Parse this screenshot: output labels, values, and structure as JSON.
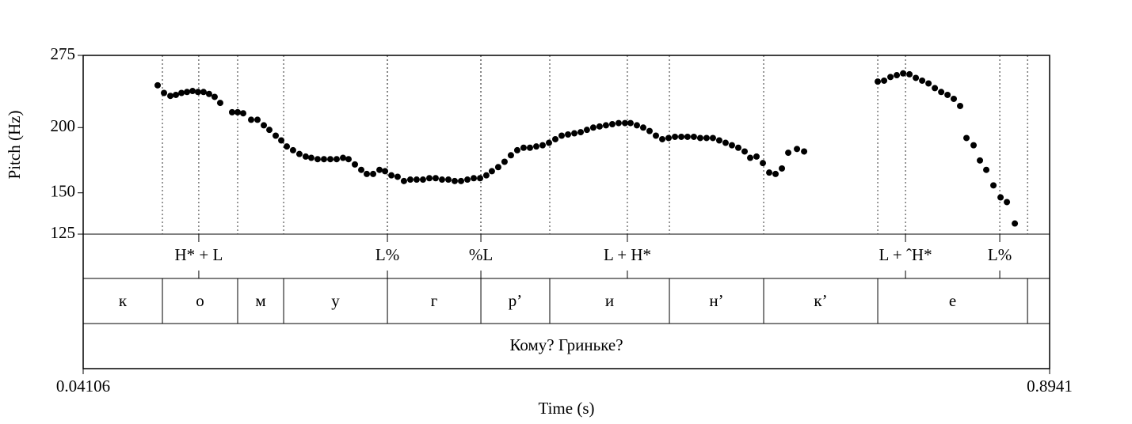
{
  "chart_data": {
    "type": "scatter",
    "x": [
      0.1068,
      0.1124,
      0.118,
      0.1229,
      0.1278,
      0.1327,
      0.1376,
      0.1424,
      0.1473,
      0.1522,
      0.1571,
      0.162,
      0.1725,
      0.1774,
      0.1823,
      0.1893,
      0.1949,
      0.2005,
      0.2054,
      0.211,
      0.2159,
      0.2208,
      0.2263,
      0.2319,
      0.2375,
      0.2424,
      0.248,
      0.2536,
      0.2592,
      0.2648,
      0.2704,
      0.2753,
      0.2809,
      0.2865,
      0.2914,
      0.297,
      0.3026,
      0.3075,
      0.3131,
      0.3186,
      0.3242,
      0.3298,
      0.3354,
      0.341,
      0.3466,
      0.3522,
      0.3578,
      0.3634,
      0.369,
      0.3746,
      0.3802,
      0.3858,
      0.3914,
      0.3969,
      0.4018,
      0.4074,
      0.413,
      0.4186,
      0.4242,
      0.4298,
      0.4354,
      0.441,
      0.4466,
      0.4522,
      0.4578,
      0.4634,
      0.469,
      0.4746,
      0.4802,
      0.4857,
      0.4913,
      0.4969,
      0.5025,
      0.5081,
      0.5137,
      0.5193,
      0.5242,
      0.5298,
      0.5354,
      0.541,
      0.5466,
      0.5522,
      0.5578,
      0.5634,
      0.569,
      0.5745,
      0.5801,
      0.5857,
      0.5913,
      0.5969,
      0.6025,
      0.6081,
      0.6137,
      0.6193,
      0.6249,
      0.6298,
      0.6354,
      0.641,
      0.6466,
      0.6522,
      0.6578,
      0.6634,
      0.6711,
      0.6774,
      0.7424,
      0.748,
      0.7536,
      0.7592,
      0.7648,
      0.7704,
      0.776,
      0.7816,
      0.7872,
      0.7928,
      0.7984,
      0.804,
      0.8095,
      0.8151,
      0.8207,
      0.827,
      0.8326,
      0.8382,
      0.8445,
      0.8508,
      0.8564,
      0.8634
    ],
    "values": [
      241,
      233,
      230,
      231,
      233,
      234,
      235,
      234,
      234,
      232,
      229,
      223,
      214,
      214,
      213,
      207,
      207,
      202,
      198,
      193,
      189,
      184,
      181,
      178,
      176,
      175,
      174,
      174,
      174,
      174,
      175,
      174,
      170,
      166,
      163,
      163,
      166,
      165,
      162,
      161,
      158,
      159,
      159,
      159,
      160,
      160,
      159,
      159,
      158,
      158,
      159,
      160,
      160,
      162,
      165,
      168,
      172,
      177,
      181,
      183,
      183,
      184,
      185,
      187,
      190,
      193,
      194,
      195,
      196,
      198,
      200,
      201,
      202,
      203,
      204,
      204,
      204,
      202,
      200,
      197,
      193,
      190,
      191,
      192,
      192,
      192,
      192,
      191,
      191,
      191,
      189,
      187,
      185,
      183,
      180,
      175,
      176,
      171,
      164,
      163,
      167,
      179,
      182,
      180,
      245,
      246,
      250,
      252,
      254,
      253,
      249,
      246,
      243,
      238,
      234,
      231,
      227,
      220,
      191,
      185,
      173,
      166,
      155,
      147,
      144,
      131
    ],
    "color": "#000000",
    "xlim": [
      0.04106,
      0.8941
    ],
    "xticks": [
      0.04106,
      0.8941
    ],
    "ylim": [
      125,
      275
    ],
    "yticks": [
      125,
      150,
      200,
      275
    ],
    "log_scale": true,
    "xlabel": "Time (s)",
    "ylabel": "Pitch (Hz)",
    "tiers": {
      "tones": [
        {
          "time": 0.1431,
          "label": "H* + L"
        },
        {
          "time": 0.3096,
          "label": "L%"
        },
        {
          "time": 0.3921,
          "label": "%L"
        },
        {
          "time": 0.5214,
          "label": "L + H*"
        },
        {
          "time": 0.7669,
          "label": "L + ˆH*"
        },
        {
          "time": 0.8501,
          "label": "L%"
        }
      ],
      "segments": {
        "boundaries": [
          0.111,
          0.1774,
          0.218,
          0.3096,
          0.3921,
          0.4529,
          0.5585,
          0.6417,
          0.7424,
          0.8746
        ],
        "labels": [
          "к",
          "о",
          "м",
          "у",
          "г",
          "р’",
          "и",
          "н’",
          "к’",
          "е",
          null
        ]
      },
      "phrase": "Кому? Гриньке?"
    }
  }
}
